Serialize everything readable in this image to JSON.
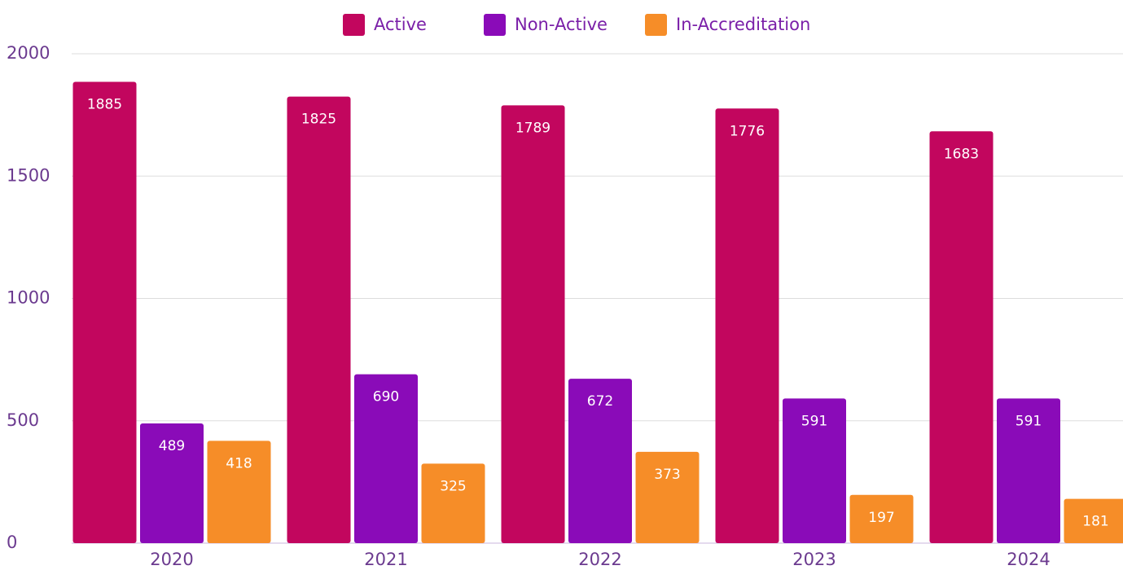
{
  "chart_data": {
    "type": "bar",
    "categories": [
      "2020",
      "2021",
      "2022",
      "2023",
      "2024"
    ],
    "series": [
      {
        "name": "Active",
        "color": "#c2065e",
        "values": [
          1885,
          1825,
          1789,
          1776,
          1683
        ]
      },
      {
        "name": "Non-Active",
        "color": "#8a0bb8",
        "values": [
          489,
          690,
          672,
          591,
          591
        ]
      },
      {
        "name": "In-Accreditation",
        "color": "#f68d28",
        "values": [
          418,
          325,
          373,
          197,
          181
        ]
      }
    ],
    "ylim": [
      0,
      2000
    ],
    "yticks": [
      0,
      500,
      1000,
      1500,
      2000
    ],
    "grid": true,
    "legend": "top"
  }
}
